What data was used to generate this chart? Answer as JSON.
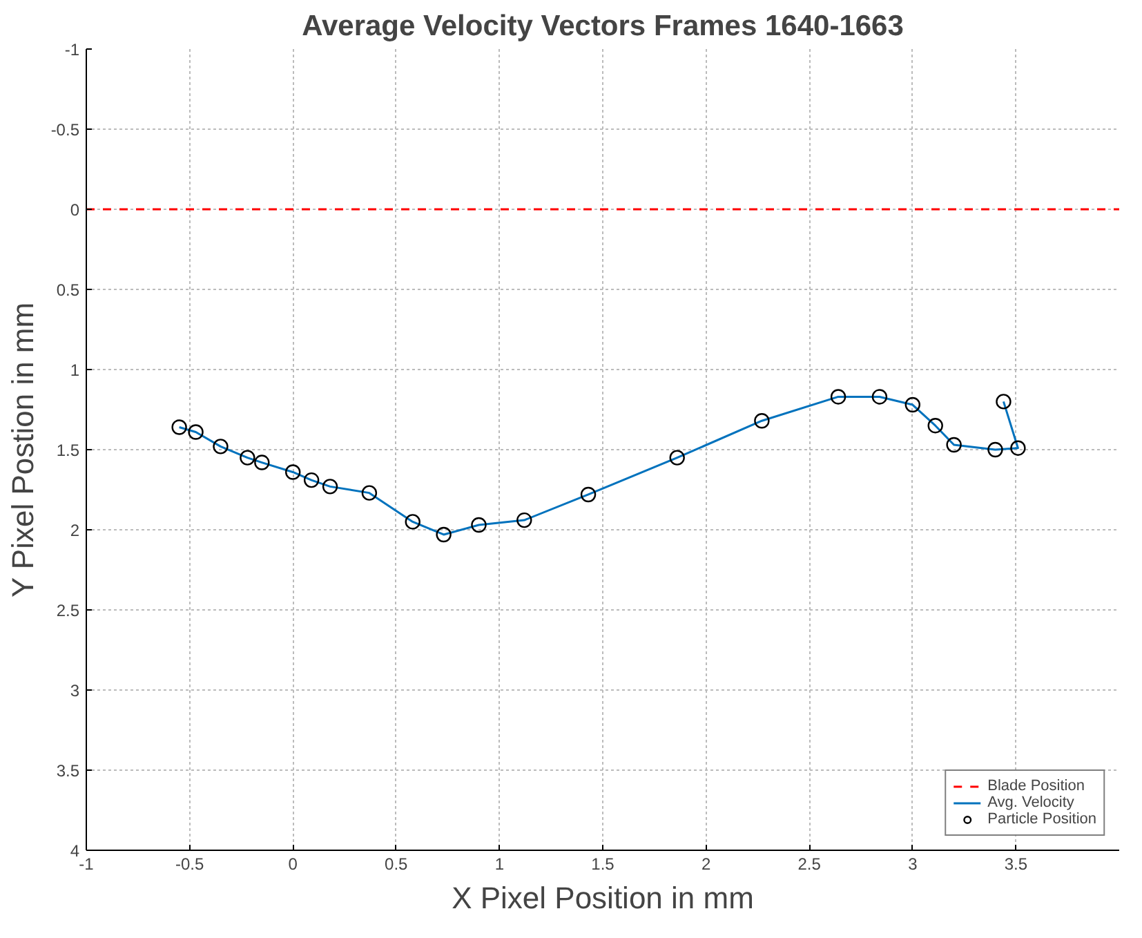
{
  "chart_data": {
    "type": "scatter",
    "title": "Average Velocity Vectors Frames 1640-1663",
    "xlabel": "X Pixel Position in mm",
    "ylabel": "Y Pixel Postion in mm",
    "xlim": [
      -1,
      4
    ],
    "xticks": [
      -1,
      -0.5,
      0,
      0.5,
      1,
      1.5,
      2,
      2.5,
      3,
      3.5
    ],
    "ylim": [
      4,
      -1
    ],
    "yticks": [
      -1,
      -0.5,
      0,
      0.5,
      1,
      1.5,
      2,
      2.5,
      3,
      3.5,
      4
    ],
    "grid": true,
    "legend": "bottom right",
    "ref_lines": [
      {
        "axis": "y",
        "value": 0,
        "label": "Blade Position",
        "color": "#ff0000",
        "line_style": "dashed"
      }
    ],
    "series": [
      {
        "name": "Avg. Velocity",
        "type": "line",
        "color": "#0072bd",
        "marker": "none",
        "x": [
          3.44,
          3.51,
          3.4,
          3.2,
          3.11,
          3.0,
          2.84,
          2.64,
          2.27,
          1.86,
          1.43,
          1.12,
          0.9,
          0.73,
          0.58,
          0.37,
          0.18,
          0.09,
          0.0,
          -0.15,
          -0.22,
          -0.35,
          -0.47,
          -0.55
        ],
        "values": [
          1.2,
          1.49,
          1.5,
          1.47,
          1.35,
          1.22,
          1.17,
          1.17,
          1.32,
          1.55,
          1.78,
          1.94,
          1.97,
          2.03,
          1.95,
          1.77,
          1.73,
          1.69,
          1.64,
          1.58,
          1.55,
          1.48,
          1.39,
          1.36
        ]
      },
      {
        "name": "Particle Position",
        "color": "#000000",
        "marker": "circle",
        "x": [
          3.44,
          3.51,
          3.4,
          3.2,
          3.11,
          3.0,
          2.84,
          2.64,
          2.27,
          1.86,
          1.43,
          1.12,
          0.9,
          0.73,
          0.58,
          0.37,
          0.18,
          0.09,
          0.0,
          -0.15,
          -0.22,
          -0.35,
          -0.47,
          -0.55
        ],
        "values": [
          1.2,
          1.49,
          1.5,
          1.47,
          1.35,
          1.22,
          1.17,
          1.17,
          1.32,
          1.55,
          1.78,
          1.94,
          1.97,
          2.03,
          1.95,
          1.77,
          1.73,
          1.69,
          1.64,
          1.58,
          1.55,
          1.48,
          1.39,
          1.36
        ]
      }
    ]
  }
}
